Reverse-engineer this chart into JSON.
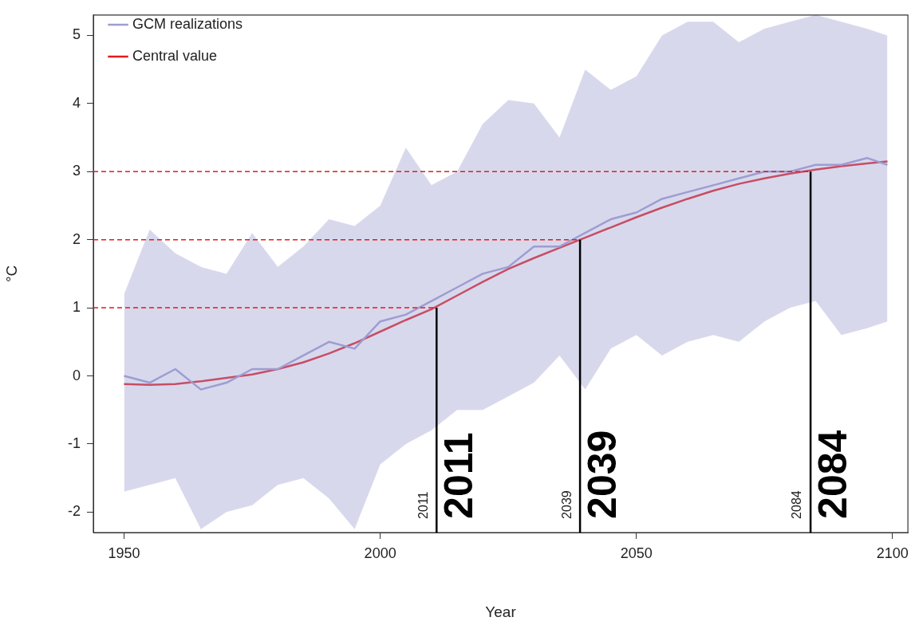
{
  "chart_data": {
    "type": "line",
    "xlabel": "Year",
    "ylabel": "°C",
    "x": [
      1950,
      1955,
      1960,
      1965,
      1970,
      1975,
      1980,
      1985,
      1990,
      1995,
      2000,
      2005,
      2010,
      2015,
      2020,
      2025,
      2030,
      2035,
      2040,
      2045,
      2050,
      2055,
      2060,
      2065,
      2070,
      2075,
      2080,
      2085,
      2090,
      2095,
      2099
    ],
    "series": [
      {
        "name": "GCM realizations",
        "color": "#9d9dd2",
        "values": [
          0.0,
          -0.1,
          0.1,
          -0.2,
          -0.1,
          0.1,
          0.1,
          0.3,
          0.5,
          0.4,
          0.8,
          0.9,
          1.1,
          1.3,
          1.5,
          1.6,
          1.9,
          1.9,
          2.1,
          2.3,
          2.4,
          2.6,
          2.7,
          2.8,
          2.9,
          3.0,
          3.0,
          3.1,
          3.1,
          3.2,
          3.1
        ],
        "lower": [
          -1.7,
          -1.6,
          -1.5,
          -2.25,
          -2.0,
          -1.9,
          -1.6,
          -1.5,
          -1.8,
          -2.25,
          -1.3,
          -1.0,
          -0.8,
          -0.5,
          -0.5,
          -0.3,
          -0.1,
          0.3,
          -0.2,
          0.4,
          0.6,
          0.3,
          0.5,
          0.6,
          0.5,
          0.8,
          1.0,
          1.1,
          0.6,
          0.7,
          0.8
        ],
        "upper": [
          1.2,
          2.15,
          1.8,
          1.6,
          1.5,
          2.1,
          1.6,
          1.9,
          2.3,
          2.2,
          2.5,
          3.35,
          2.8,
          3.0,
          3.7,
          4.05,
          4.0,
          3.5,
          4.5,
          4.2,
          4.4,
          5.0,
          5.2,
          5.2,
          4.9,
          5.1,
          5.2,
          5.3,
          5.2,
          5.1,
          5.0
        ]
      },
      {
        "name": "Central value",
        "color": "#e31a1c",
        "values": [
          -0.12,
          -0.13,
          -0.12,
          -0.08,
          -0.03,
          0.02,
          0.1,
          0.2,
          0.33,
          0.48,
          0.65,
          0.82,
          0.98,
          1.18,
          1.38,
          1.57,
          1.73,
          1.88,
          2.03,
          2.18,
          2.33,
          2.47,
          2.6,
          2.72,
          2.82,
          2.9,
          2.97,
          3.03,
          3.08,
          3.12,
          3.15
        ]
      }
    ],
    "xlim": [
      1944,
      2103
    ],
    "ylim": [
      -2.3,
      5.3
    ],
    "xticks": [
      1950,
      2000,
      2050,
      2100
    ],
    "yticks": [
      -2,
      -1,
      0,
      1,
      2,
      3,
      4,
      5
    ],
    "ref_lines": [
      {
        "axis": "y",
        "value": 1,
        "color": "#e31a1c",
        "line_style": "dashed"
      },
      {
        "axis": "y",
        "value": 2,
        "color": "#e31a1c",
        "line_style": "dashed"
      },
      {
        "axis": "y",
        "value": 3,
        "color": "#e31a1c",
        "line_style": "dashed"
      },
      {
        "axis": "x",
        "value": 2011,
        "label": "2011",
        "color": "#000000",
        "line_style": "solid"
      },
      {
        "axis": "x",
        "value": 2039,
        "label": "2039",
        "color": "#000000",
        "line_style": "solid"
      },
      {
        "axis": "x",
        "value": 2084,
        "label": "2084",
        "color": "#000000",
        "line_style": "solid"
      }
    ],
    "annotations": [
      {
        "text": "2011",
        "x": 2011,
        "y": -2.1
      },
      {
        "text": "2039",
        "x": 2039,
        "y": -2.1
      },
      {
        "text": "2084",
        "x": 2084,
        "y": -2.1
      }
    ],
    "legend": "top left",
    "grid": false,
    "marker": "none",
    "line_style": "solid"
  }
}
